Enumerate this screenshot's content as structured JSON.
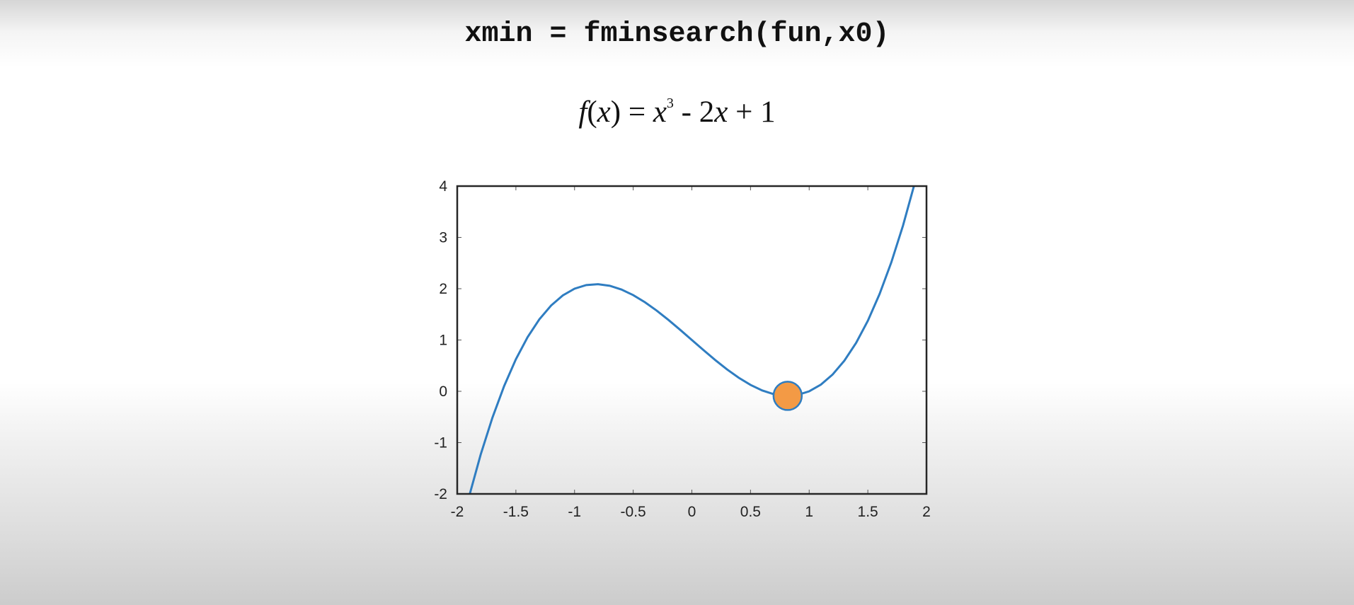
{
  "code": "xmin = fminsearch(fun,x0)",
  "formula": {
    "f": "f",
    "open": "(",
    "x1": "x",
    "close_eq": ") = ",
    "x2": "x",
    "exp": "3",
    "mid": " - 2",
    "x3": "x",
    "tail": " + 1"
  },
  "chart_data": {
    "type": "line",
    "function": "x^3 - 2x + 1",
    "xlim": [
      -2,
      2
    ],
    "ylim": [
      -2,
      4
    ],
    "x_ticks": [
      -2,
      -1.5,
      -1,
      -0.5,
      0,
      0.5,
      1,
      1.5,
      2
    ],
    "x_tick_labels": [
      "-2",
      "-1.5",
      "-1",
      "-0.5",
      "0",
      "0.5",
      "1",
      "1.5",
      "2"
    ],
    "y_ticks": [
      -2,
      -1,
      0,
      1,
      2,
      3,
      4
    ],
    "y_tick_labels": [
      "-2",
      "-1",
      "0",
      "1",
      "2",
      "3",
      "4"
    ],
    "series": [
      {
        "color": "#2f7dc1",
        "x": [
          -2,
          -1.9,
          -1.8,
          -1.7,
          -1.6,
          -1.5,
          -1.4,
          -1.3,
          -1.2,
          -1.1,
          -1,
          -0.9,
          -0.8,
          -0.7,
          -0.6,
          -0.5,
          -0.4,
          -0.3,
          -0.2,
          -0.1,
          0,
          0.1,
          0.2,
          0.3,
          0.4,
          0.5,
          0.6,
          0.7,
          0.8,
          0.9,
          1,
          1.1,
          1.2,
          1.3,
          1.4,
          1.5,
          1.6,
          1.7,
          1.8,
          1.9,
          2
        ],
        "y": [
          -3,
          -2.059,
          -1.232,
          -0.513,
          0.104,
          0.625,
          1.056,
          1.403,
          1.672,
          1.869,
          2,
          2.071,
          2.088,
          2.057,
          1.984,
          1.875,
          1.736,
          1.573,
          1.392,
          1.199,
          1,
          0.801,
          0.608,
          0.427,
          0.264,
          0.125,
          0.016,
          -0.057,
          -0.088,
          -0.071,
          0,
          0.131,
          0.328,
          0.597,
          0.944,
          1.375,
          1.896,
          2.513,
          3.232,
          4.059,
          5
        ]
      }
    ],
    "marker": {
      "x": 0.8165,
      "y": -0.0887,
      "fill": "#f39a45",
      "stroke": "#2f7dc1"
    },
    "grid": false
  }
}
